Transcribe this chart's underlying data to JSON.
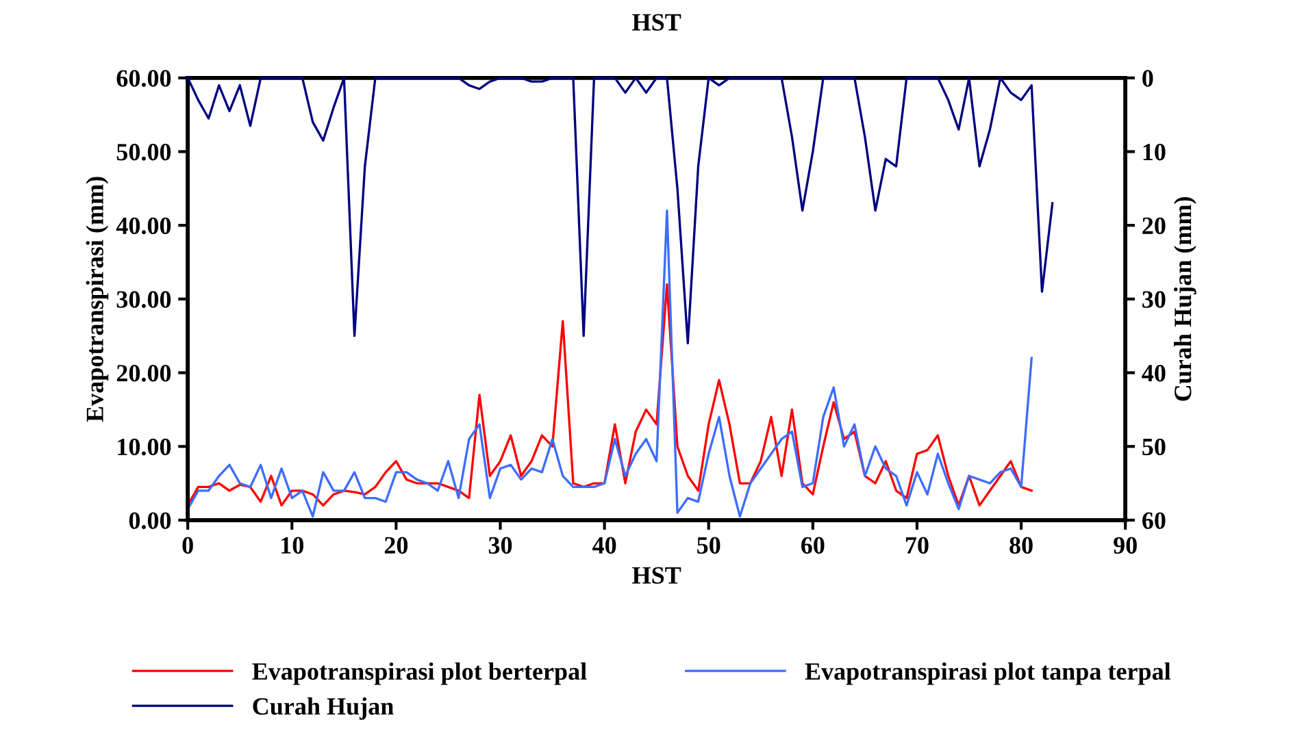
{
  "chart_data": {
    "type": "line",
    "title": "HST",
    "xlabel": "HST",
    "ylabel": "Evapotranspirasi (mm)",
    "y2label": "Curah Hujan (mm)",
    "xlim": [
      0,
      90
    ],
    "xticks": [
      0,
      10,
      20,
      30,
      40,
      50,
      60,
      70,
      80,
      90
    ],
    "ylim": [
      0,
      60
    ],
    "yticks": [
      {
        "value": 0,
        "label": "0.00"
      },
      {
        "value": 10,
        "label": "10.00"
      },
      {
        "value": 20,
        "label": "20.00"
      },
      {
        "value": 30,
        "label": "30.00"
      },
      {
        "value": 40,
        "label": "40.00"
      },
      {
        "value": 50,
        "label": "50.00"
      },
      {
        "value": 60,
        "label": "60.00"
      }
    ],
    "y2lim": [
      60,
      0
    ],
    "y2ticks": [
      0,
      10,
      20,
      30,
      40,
      50,
      60
    ],
    "grid": false,
    "legend": "bottom",
    "marker": "none",
    "line_style": "solid",
    "series": [
      {
        "name": "Evapotranspirasi plot berterpal",
        "color": "#ff0000",
        "x": [
          0,
          1,
          2,
          3,
          4,
          5,
          6,
          7,
          8,
          9,
          10,
          11,
          12,
          13,
          14,
          15,
          16,
          17,
          18,
          19,
          20,
          21,
          22,
          23,
          24,
          25,
          26,
          27,
          28,
          29,
          30,
          31,
          32,
          33,
          34,
          35,
          36,
          37,
          38,
          39,
          40,
          41,
          42,
          43,
          44,
          45,
          46,
          47,
          48,
          49,
          50,
          51,
          52,
          53,
          54,
          55,
          56,
          57,
          58,
          59,
          60,
          61,
          62,
          63,
          64,
          65,
          66,
          67,
          68,
          69,
          70,
          71,
          72,
          73,
          74,
          75,
          76,
          77,
          78,
          79,
          80,
          81
        ],
        "values": [
          2,
          4.5,
          4.5,
          5,
          4,
          4.8,
          4.5,
          2.5,
          6,
          2,
          4,
          4,
          3.5,
          2,
          3.5,
          4,
          3.8,
          3.5,
          4.5,
          6.5,
          8,
          5.5,
          5,
          5,
          5,
          4.5,
          4,
          3,
          17,
          6,
          8,
          11.5,
          6,
          8,
          11.5,
          10,
          27,
          5,
          4.5,
          5,
          5,
          13,
          5,
          12,
          15,
          13,
          32,
          10,
          6,
          4,
          13,
          19,
          13,
          5,
          5,
          8,
          14,
          6,
          15,
          5,
          3.5,
          10,
          16,
          11,
          12,
          6,
          5,
          8,
          4,
          3,
          9,
          9.5,
          11.5,
          6,
          2,
          6,
          2,
          4,
          6,
          8,
          4.5,
          4
        ]
      },
      {
        "name": "Evapotranspirasi plot tanpa terpal",
        "color": "#3d6dff",
        "x": [
          0,
          1,
          2,
          3,
          4,
          5,
          6,
          7,
          8,
          9,
          10,
          11,
          12,
          13,
          14,
          15,
          16,
          17,
          18,
          19,
          20,
          21,
          22,
          23,
          24,
          25,
          26,
          27,
          28,
          29,
          30,
          31,
          32,
          33,
          34,
          35,
          36,
          37,
          38,
          39,
          40,
          41,
          42,
          43,
          44,
          45,
          46,
          47,
          48,
          49,
          50,
          51,
          52,
          53,
          54,
          55,
          56,
          57,
          58,
          59,
          60,
          61,
          62,
          63,
          64,
          65,
          66,
          67,
          68,
          69,
          70,
          71,
          72,
          73,
          74,
          75,
          76,
          77,
          78,
          79,
          80,
          81
        ],
        "values": [
          1.5,
          4,
          4,
          6,
          7.5,
          5,
          4.5,
          7.5,
          3,
          7,
          3,
          4,
          0.5,
          6.5,
          4,
          4,
          6.5,
          3,
          3,
          2.5,
          6.5,
          6.5,
          5.5,
          5,
          4,
          8,
          3,
          11,
          13,
          3,
          7,
          7.5,
          5.5,
          7,
          6.5,
          11,
          6,
          4.5,
          4.5,
          4.5,
          5,
          11,
          6,
          9,
          11,
          8,
          42,
          1,
          3,
          2.5,
          9,
          14,
          6,
          0.5,
          5,
          7,
          9,
          11,
          12,
          4.5,
          5,
          14,
          18,
          10,
          13,
          6,
          10,
          7,
          6,
          2,
          6.5,
          3.5,
          9,
          5,
          1.5,
          6,
          5.5,
          5,
          6.5,
          7,
          4.5,
          22
        ]
      },
      {
        "name": "Curah Hujan",
        "color": "#000080",
        "axis": "y2",
        "x": [
          0,
          1,
          2,
          3,
          4,
          5,
          6,
          7,
          8,
          9,
          10,
          11,
          12,
          13,
          14,
          15,
          16,
          17,
          18,
          19,
          20,
          21,
          22,
          23,
          24,
          25,
          26,
          27,
          28,
          29,
          30,
          31,
          32,
          33,
          34,
          35,
          36,
          37,
          38,
          39,
          40,
          41,
          42,
          43,
          44,
          45,
          46,
          47,
          48,
          49,
          50,
          51,
          52,
          53,
          54,
          55,
          56,
          57,
          58,
          59,
          60,
          61,
          62,
          63,
          64,
          65,
          66,
          67,
          68,
          69,
          70,
          71,
          72,
          73,
          74,
          75,
          76,
          77,
          78,
          79,
          80,
          81,
          82,
          83
        ],
        "values": [
          0,
          3,
          5.5,
          1,
          4.5,
          1,
          6.5,
          0,
          0,
          0,
          0,
          0,
          6,
          8.5,
          4,
          0,
          35,
          12,
          0,
          0,
          0,
          0,
          0,
          0,
          0,
          0,
          0,
          1,
          1.5,
          0.5,
          0,
          0,
          0,
          0.5,
          0.5,
          0,
          0,
          0,
          35,
          0,
          0,
          0,
          2,
          0,
          2,
          0,
          0,
          15,
          36,
          12,
          0,
          1,
          0,
          0,
          0,
          0,
          0,
          0,
          8,
          18,
          10,
          0,
          0,
          0,
          0,
          8,
          18,
          11,
          12,
          0,
          0,
          0,
          0,
          3,
          7,
          0,
          12,
          7,
          0,
          2,
          3,
          1,
          29,
          17
        ]
      }
    ]
  }
}
